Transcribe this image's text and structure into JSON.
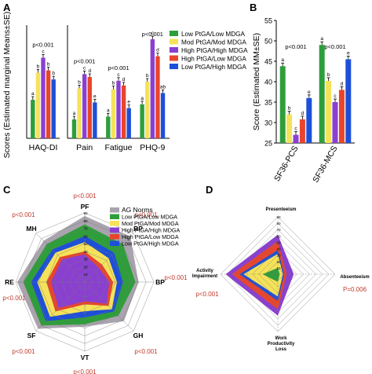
{
  "colors": {
    "green": "#2e9e3a",
    "yellow": "#f5e25a",
    "purple": "#8a3fd1",
    "red": "#e8452c",
    "blue": "#1e4fd8",
    "gray": "#a9a3ad",
    "pvalue_red": "#c0392b"
  },
  "chart_data": [
    {
      "panel": "A",
      "type": "bar",
      "ylabel": "Scores (Estimated marginal Means±SE)",
      "series": [
        {
          "name": "Low PtGA/Low MDGA"
        },
        {
          "name": "Mod PtGA/Mod MDGA"
        },
        {
          "name": "High PtGA/High MDGA"
        },
        {
          "name": "High PtGA/Low MDGA"
        },
        {
          "name": "Low PtGA/High MDGA"
        }
      ],
      "subplots": [
        {
          "categories": [
            "HAQ-DI"
          ],
          "ylim": [
            0,
            2.5
          ],
          "pvalues": [
            "p<0.001"
          ],
          "values": [
            [
              0.85,
              1.45,
              1.78,
              1.5,
              1.3
            ]
          ],
          "letters": [
            [
              "a",
              "b",
              "c",
              "b",
              "b"
            ]
          ]
        },
        {
          "categories": [
            "Pain",
            "Fatigue",
            "PHQ-9"
          ],
          "ylim": [
            0,
            12
          ],
          "pvalues": [
            "p<0.001",
            "p<0.001",
            "p<0.001"
          ],
          "values": [
            [
              2.0,
              5.3,
              6.8,
              6.5,
              3.8
            ],
            [
              2.3,
              5.2,
              6.1,
              5.6,
              3.2
            ],
            [
              3.6,
              6.0,
              10.5,
              8.7,
              4.8
            ]
          ],
          "letters": [
            [
              "a",
              "b",
              "c",
              "d",
              "e"
            ],
            [
              "a",
              "b",
              "c",
              "d",
              "e"
            ],
            [
              "a",
              "b",
              "c",
              "d",
              "ab"
            ]
          ]
        }
      ]
    },
    {
      "panel": "B",
      "type": "bar",
      "ylabel": "Score (Estimated MM±SE)",
      "categories": [
        "SF36-PCS",
        "SF36-MCS"
      ],
      "ylim": [
        25,
        55
      ],
      "yticks": [
        25,
        30,
        35,
        40,
        45,
        50,
        55
      ],
      "pvalues": [
        "p<0.001",
        "p<0.001"
      ],
      "values": [
        [
          43.8,
          32.0,
          27.0,
          30.8,
          36.0
        ],
        [
          49.0,
          40.2,
          35.0,
          38.0,
          45.5
        ]
      ],
      "letters": [
        [
          "a",
          "b",
          "c",
          "d",
          "e"
        ],
        [
          "a",
          "b",
          "c",
          "d",
          "e"
        ]
      ]
    },
    {
      "panel": "C",
      "type": "radar",
      "axes": [
        "PF",
        "RP",
        "BP",
        "GH",
        "VT",
        "SF",
        "RE",
        "MH"
      ],
      "rticks": [
        10,
        20,
        30,
        40,
        50,
        60,
        70,
        80,
        90
      ],
      "rmax": 90,
      "pvalues": [
        "p<0.001",
        "p<0.001",
        "p<0.001",
        "p<0.001",
        "p<0.001",
        "p<0.001",
        "p<0.001",
        "p<0.001"
      ],
      "series": [
        {
          "name": "AG Norms",
          "values": [
            86,
            84,
            70,
            72,
            58,
            86,
            88,
            76
          ]
        },
        {
          "name": "Low PtGA/Low MDGA",
          "values": [
            75,
            70,
            66,
            62,
            55,
            80,
            80,
            70
          ]
        },
        {
          "name": "Mod PtGA/Mod MDGA",
          "values": [
            52,
            44,
            42,
            50,
            38,
            64,
            62,
            54
          ]
        },
        {
          "name": "High PtGA/High MDGA",
          "values": [
            36,
            26,
            32,
            40,
            25,
            48,
            44,
            42
          ]
        },
        {
          "name": "High PtGA/Low MDGA",
          "values": [
            40,
            32,
            37,
            44,
            29,
            54,
            50,
            46
          ]
        },
        {
          "name": "Low PtGA/High MDGA",
          "values": [
            60,
            54,
            50,
            54,
            46,
            72,
            70,
            60
          ]
        }
      ]
    },
    {
      "panel": "D",
      "type": "radar",
      "axes": [
        "Presenteeism",
        "Absenteeism",
        "Work Productivity Loss",
        "Activity Impairment"
      ],
      "rticks": [
        10,
        20,
        30,
        40,
        50,
        60,
        70,
        80,
        90
      ],
      "rmax": 90,
      "pvalues": [
        "",
        "P=0.006",
        "",
        "p<0.001"
      ],
      "series": [
        {
          "name": "High PtGA/High MDGA",
          "values": [
            62,
            25,
            65,
            82
          ]
        },
        {
          "name": "High PtGA/Low MDGA",
          "values": [
            52,
            14,
            55,
            72
          ]
        },
        {
          "name": "Low PtGA/High MDGA",
          "values": [
            38,
            10,
            42,
            60
          ]
        },
        {
          "name": "Mod PtGA/Mod MDGA",
          "values": [
            32,
            8,
            35,
            54
          ]
        },
        {
          "name": "Low PtGA/Low MDGA",
          "values": [
            10,
            3,
            12,
            24
          ]
        }
      ]
    }
  ],
  "panels": {
    "a": {
      "label": "A"
    },
    "b": {
      "label": "B"
    },
    "c": {
      "label": "C"
    },
    "d": {
      "label": "D"
    }
  }
}
